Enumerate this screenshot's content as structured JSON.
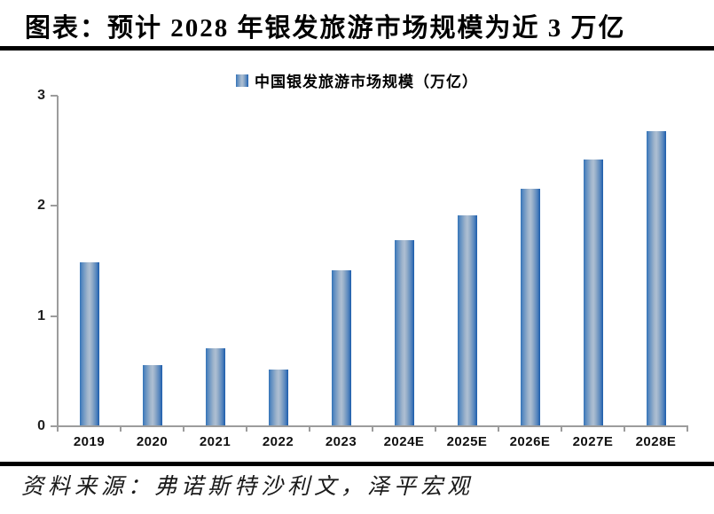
{
  "header": {
    "title": "图表：预计 2028 年银发旅游市场规模为近 3 万亿"
  },
  "legend": {
    "label": "中国银发旅游市场规模（万亿）",
    "marker_color_edges": "#2e6fb5",
    "marker_color_center": "#aebfd3"
  },
  "chart_data": {
    "type": "bar",
    "title": "图表：预计 2028 年银发旅游市场规模为近 3 万亿",
    "legend": "中国银发旅游市场规模（万亿）",
    "legend_position": "top-center",
    "categories": [
      "2019",
      "2020",
      "2021",
      "2022",
      "2023",
      "2024E",
      "2025E",
      "2026E",
      "2027E",
      "2028E"
    ],
    "values": [
      1.48,
      0.55,
      0.7,
      0.51,
      1.41,
      1.68,
      1.91,
      2.15,
      2.41,
      2.67
    ],
    "xlabel": "",
    "ylabel": "",
    "ylim": [
      0,
      3
    ],
    "yticks": [
      0,
      1,
      2,
      3
    ],
    "grid": false,
    "bar_gradient": [
      "#3373b8",
      "#aebfd3",
      "#1b5cab"
    ],
    "axis_color": "#9c9c9c",
    "label_color": "#111111"
  },
  "footer": {
    "source": "资料来源：弗诺斯特沙利文，泽平宏观"
  }
}
